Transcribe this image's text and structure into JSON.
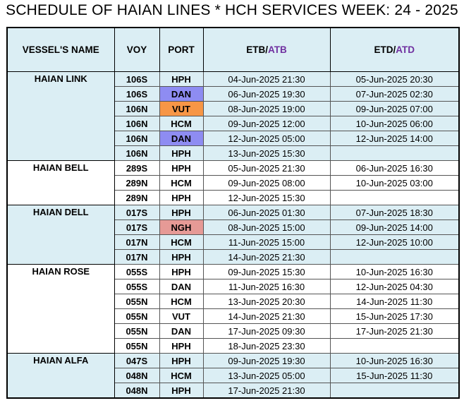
{
  "title": "SCHEDULE OF HAIAN LINES * HCH SERVICES WEEK: 24 - 2025",
  "headers": {
    "vessel": "VESSEL'S NAME",
    "voy": "VOY",
    "port": "PORT",
    "etb": "ETB/",
    "atb": "ATB",
    "etd": "ETD/",
    "atd": "ATD"
  },
  "colors": {
    "accent_atb": "#7030a0",
    "row_blue": "#dbeef4",
    "port_dan_highlight": "#8e8cf2",
    "port_vut_highlight": "#f79646",
    "port_ngh_highlight": "#e69a96"
  },
  "vessels": [
    {
      "name": "HAIAN LINK",
      "shade": "blue",
      "rows": [
        {
          "voy": "106S",
          "port": "HPH",
          "etb": "04-Jun-2025 21:30",
          "etd": "05-Jun-2025 20:30",
          "highlight": ""
        },
        {
          "voy": "106S",
          "port": "DAN",
          "etb": "06-Jun-2025 19:30",
          "etd": "07-Jun-2025 02:30",
          "highlight": "#8e8cf2"
        },
        {
          "voy": "106N",
          "port": "VUT",
          "etb": "08-Jun-2025 19:00",
          "etd": "09-Jun-2025 07:00",
          "highlight": "#f79646"
        },
        {
          "voy": "106N",
          "port": "HCM",
          "etb": "09-Jun-2025 12:00",
          "etd": "10-Jun-2025 06:00",
          "highlight": ""
        },
        {
          "voy": "106N",
          "port": "DAN",
          "etb": "12-Jun-2025 05:00",
          "etd": "12-Jun-2025 14:00",
          "highlight": "#8e8cf2"
        },
        {
          "voy": "106N",
          "port": "HPH",
          "etb": "13-Jun-2025 15:30",
          "etd": "",
          "highlight": ""
        }
      ]
    },
    {
      "name": "HAIAN BELL",
      "shade": "white",
      "rows": [
        {
          "voy": "289S",
          "port": "HPH",
          "etb": "05-Jun-2025 21:30",
          "etd": "06-Jun-2025 16:30",
          "highlight": ""
        },
        {
          "voy": "289N",
          "port": "HCM",
          "etb": "09-Jun-2025 08:00",
          "etd": "10-Jun-2025 03:00",
          "highlight": ""
        },
        {
          "voy": "289N",
          "port": "HPH",
          "etb": "12-Jun-2025 15:30",
          "etd": "",
          "highlight": ""
        }
      ]
    },
    {
      "name": "HAIAN DELL",
      "shade": "blue",
      "rows": [
        {
          "voy": "017S",
          "port": "HPH",
          "etb": "06-Jun-2025 01:30",
          "etd": "07-Jun-2025 18:30",
          "highlight": ""
        },
        {
          "voy": "017S",
          "port": "NGH",
          "etb": "08-Jun-2025 15:00",
          "etd": "09-Jun-2025 14:00",
          "highlight": "#e69a96"
        },
        {
          "voy": "017N",
          "port": "HCM",
          "etb": "11-Jun-2025 15:00",
          "etd": "12-Jun-2025 10:00",
          "highlight": ""
        },
        {
          "voy": "017N",
          "port": "HPH",
          "etb": "14-Jun-2025 21:30",
          "etd": "",
          "highlight": ""
        }
      ]
    },
    {
      "name": "HAIAN ROSE",
      "shade": "white",
      "rows": [
        {
          "voy": "055S",
          "port": "HPH",
          "etb": "09-Jun-2025 15:30",
          "etd": "10-Jun-2025 16:30",
          "highlight": ""
        },
        {
          "voy": "055S",
          "port": "DAN",
          "etb": "11-Jun-2025 16:30",
          "etd": "12-Jun-2025 04:30",
          "highlight": ""
        },
        {
          "voy": "055N",
          "port": "HCM",
          "etb": "13-Jun-2025 20:30",
          "etd": "14-Jun-2025 11:30",
          "highlight": ""
        },
        {
          "voy": "055N",
          "port": "VUT",
          "etb": "14-Jun-2025 21:30",
          "etd": "15-Jun-2025 17:30",
          "highlight": ""
        },
        {
          "voy": "055N",
          "port": "DAN",
          "etb": "17-Jun-2025 09:30",
          "etd": "17-Jun-2025 21:30",
          "highlight": ""
        },
        {
          "voy": "055N",
          "port": "HPH",
          "etb": "18-Jun-2025 23:30",
          "etd": "",
          "highlight": ""
        }
      ]
    },
    {
      "name": "HAIAN ALFA",
      "shade": "blue",
      "rows": [
        {
          "voy": "047S",
          "port": "HPH",
          "etb": "09-Jun-2025 19:30",
          "etd": "10-Jun-2025 16:30",
          "highlight": ""
        },
        {
          "voy": "048N",
          "port": "HCM",
          "etb": "13-Jun-2025 05:00",
          "etd": "15-Jun-2025 11:30",
          "highlight": ""
        },
        {
          "voy": "048N",
          "port": "HPH",
          "etb": "17-Jun-2025 21:30",
          "etd": "",
          "highlight": ""
        }
      ]
    }
  ]
}
